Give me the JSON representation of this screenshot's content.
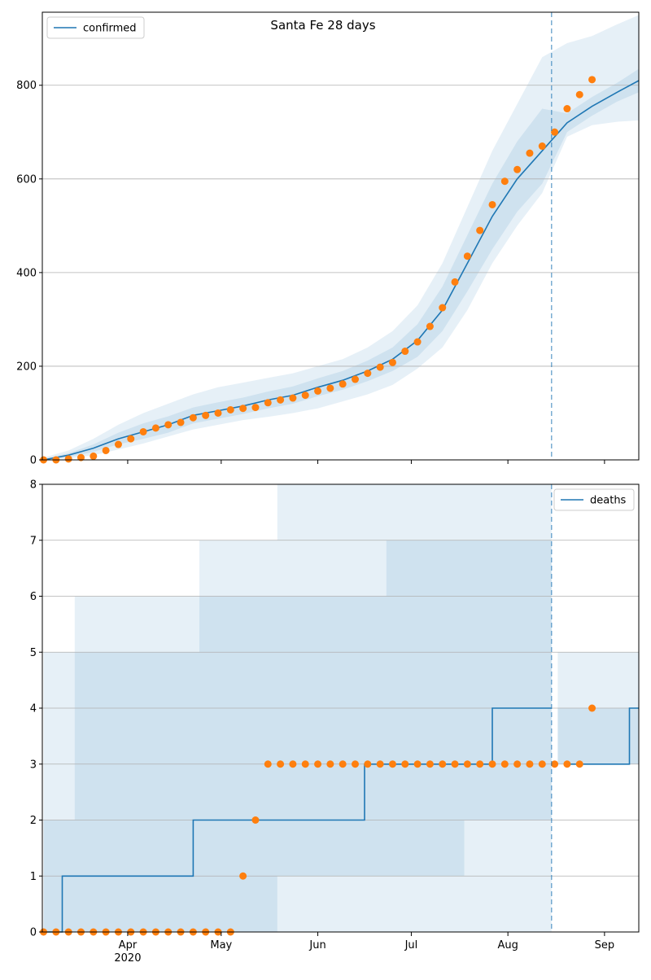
{
  "chart_data": [
    {
      "type": "line",
      "title": "Santa Fe 28 days",
      "legend": "upper left",
      "grid": true,
      "step": false,
      "xlim": [
        64.6,
        256
      ],
      "ylim": [
        0,
        956
      ],
      "yticks": [
        0,
        200,
        400,
        600,
        800
      ],
      "xticks": [
        {
          "value": 92,
          "label": "Apr"
        },
        {
          "value": 122,
          "label": "May"
        },
        {
          "value": 153,
          "label": "Jun"
        },
        {
          "value": 183,
          "label": "Jul"
        },
        {
          "value": 214,
          "label": "Aug"
        },
        {
          "value": 245,
          "label": "Sep"
        }
      ],
      "year_label": "2020",
      "vline": 228,
      "vline_color": "#1f77b4",
      "series": [
        {
          "name": "confirmed",
          "color": "#1f77b4",
          "x": [
            65,
            73,
            81,
            89,
            97,
            105,
            113,
            121,
            129,
            137,
            145,
            153,
            161,
            169,
            177,
            185,
            193,
            201,
            209,
            217,
            225,
            233,
            241,
            249,
            256
          ],
          "values": [
            0,
            10,
            25,
            45,
            60,
            75,
            95,
            105,
            115,
            128,
            138,
            155,
            170,
            190,
            215,
            255,
            320,
            420,
            520,
            600,
            660,
            720,
            755,
            785,
            810
          ]
        }
      ],
      "observed": {
        "color": "#ff7f0e",
        "x": [
          65,
          69,
          73,
          77,
          81,
          85,
          89,
          93,
          97,
          101,
          105,
          109,
          113,
          117,
          121,
          125,
          129,
          133,
          137,
          141,
          145,
          149,
          153,
          157,
          161,
          165,
          169,
          173,
          177,
          181,
          185,
          189,
          193,
          197,
          201,
          205,
          209,
          213,
          217,
          221,
          225,
          229,
          233,
          237,
          241
        ],
        "values": [
          0,
          0,
          2,
          5,
          8,
          20,
          33,
          45,
          60,
          68,
          75,
          80,
          90,
          95,
          100,
          107,
          110,
          112,
          122,
          128,
          132,
          138,
          147,
          153,
          162,
          172,
          185,
          198,
          208,
          232,
          252,
          285,
          325,
          380,
          435,
          490,
          545,
          595,
          620,
          655,
          670,
          700,
          750,
          780,
          812
        ]
      },
      "bands": [
        {
          "x": [
            65,
            73,
            81,
            89,
            97,
            105,
            113,
            121,
            129,
            137,
            145,
            153,
            161,
            169,
            177,
            185,
            193,
            201,
            209,
            217,
            225,
            233,
            241,
            249,
            256
          ],
          "upper": [
            5,
            20,
            45,
            75,
            100,
            120,
            140,
            155,
            165,
            175,
            185,
            200,
            215,
            240,
            275,
            330,
            420,
            540,
            660,
            760,
            860,
            890,
            905,
            930,
            950
          ],
          "lower": [
            0,
            3,
            10,
            22,
            35,
            50,
            65,
            75,
            85,
            92,
            100,
            110,
            125,
            140,
            160,
            195,
            240,
            320,
            420,
            500,
            570,
            690,
            715,
            722,
            725
          ]
        },
        {
          "x": [
            65,
            73,
            81,
            89,
            97,
            105,
            113,
            121,
            129,
            137,
            145,
            153,
            161,
            169,
            177,
            185,
            193,
            201,
            209,
            217,
            225,
            233,
            241,
            249,
            256
          ],
          "upper": [
            2,
            14,
            33,
            58,
            78,
            93,
            112,
            123,
            133,
            146,
            157,
            174,
            190,
            212,
            240,
            290,
            370,
            480,
            590,
            680,
            750,
            740,
            775,
            805,
            835
          ],
          "lower": [
            0,
            6,
            17,
            33,
            45,
            58,
            78,
            88,
            98,
            110,
            120,
            136,
            150,
            168,
            190,
            220,
            275,
            360,
            450,
            530,
            590,
            700,
            735,
            765,
            785
          ]
        }
      ]
    },
    {
      "type": "line",
      "legend": "upper right",
      "grid": true,
      "step": true,
      "xlim": [
        64.6,
        256
      ],
      "ylim": [
        0,
        8
      ],
      "yticks": [
        0,
        1,
        2,
        3,
        4,
        5,
        6,
        7,
        8
      ],
      "xticks": [
        {
          "value": 92,
          "label": "Apr"
        },
        {
          "value": 122,
          "label": "May"
        },
        {
          "value": 153,
          "label": "Jun"
        },
        {
          "value": 183,
          "label": "Jul"
        },
        {
          "value": 214,
          "label": "Aug"
        },
        {
          "value": 245,
          "label": "Sep"
        }
      ],
      "year_label": "2020",
      "vline": 228,
      "vline_color": "#1f77b4",
      "series": [
        {
          "name": "deaths",
          "color": "#1f77b4",
          "x": [
            65,
            71,
            71,
            113,
            113,
            168,
            168,
            209,
            209,
            228,
            229,
            233,
            253,
            253,
            256
          ],
          "values": [
            0,
            0,
            1,
            1,
            2,
            2,
            3,
            3,
            4,
            4,
            null,
            3,
            3,
            4,
            4
          ]
        }
      ],
      "observed": {
        "color": "#ff7f0e",
        "x": [
          65,
          69,
          73,
          77,
          81,
          85,
          89,
          93,
          97,
          101,
          105,
          109,
          113,
          117,
          121,
          125,
          129,
          133,
          137,
          141,
          145,
          149,
          153,
          157,
          161,
          165,
          169,
          173,
          177,
          181,
          185,
          189,
          193,
          197,
          201,
          205,
          209,
          213,
          217,
          221,
          225,
          229,
          233,
          237,
          241
        ],
        "values": [
          0,
          0,
          0,
          0,
          0,
          0,
          0,
          0,
          0,
          0,
          0,
          0,
          0,
          0,
          0,
          0,
          1,
          2,
          3,
          3,
          3,
          3,
          3,
          3,
          3,
          3,
          3,
          3,
          3,
          3,
          3,
          3,
          3,
          3,
          3,
          3,
          3,
          3,
          3,
          3,
          3,
          3,
          3,
          3,
          4
        ]
      },
      "bands": [
        {
          "x": [
            65,
            75,
            95,
            115,
            140,
            175,
            200,
            228
          ],
          "upper": [
            5,
            6,
            6,
            7,
            8,
            8,
            8,
            8
          ],
          "lower": [
            0,
            0,
            0,
            0,
            0,
            0,
            0,
            0
          ]
        },
        {
          "x": [
            65,
            75,
            95,
            115,
            140,
            175,
            200,
            228
          ],
          "upper": [
            2,
            5,
            5,
            6,
            6,
            7,
            7,
            8
          ],
          "lower": [
            0,
            0,
            0,
            0,
            1,
            1,
            2,
            3
          ]
        },
        {
          "x": [
            230,
            240,
            256
          ],
          "upper": [
            5,
            5,
            6
          ],
          "lower": [
            3,
            3,
            3
          ]
        },
        {
          "x": [
            230,
            240,
            256
          ],
          "upper": [
            4,
            4,
            5
          ],
          "lower": [
            3,
            3,
            3
          ]
        }
      ]
    }
  ]
}
